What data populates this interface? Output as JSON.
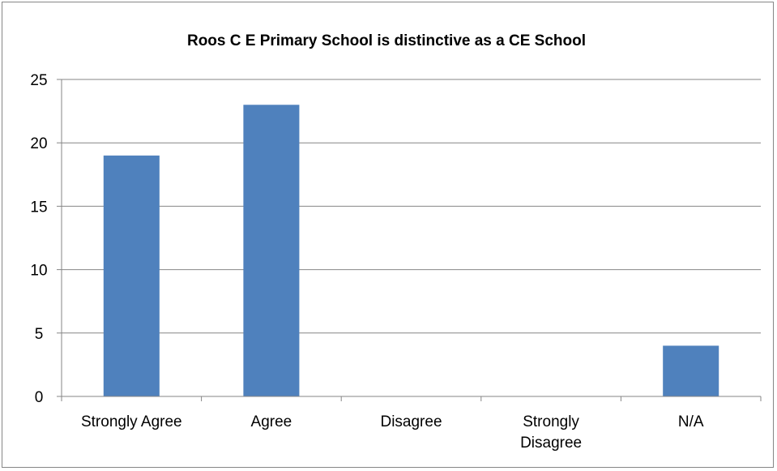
{
  "chart_data": {
    "type": "bar",
    "title": "Roos C E Primary School is  distinctive as a CE School",
    "categories": [
      "Strongly Agree",
      "Agree",
      "Disagree",
      "Strongly Disagree",
      "N/A"
    ],
    "category_lines": [
      [
        "Strongly Agree"
      ],
      [
        "Agree"
      ],
      [
        "Disagree"
      ],
      [
        "Strongly",
        "Disagree"
      ],
      [
        "N/A"
      ]
    ],
    "values": [
      19,
      23,
      0,
      0,
      4
    ],
    "yticks": [
      0,
      5,
      10,
      15,
      20,
      25
    ],
    "ylim": [
      0,
      25
    ],
    "xlabel": "",
    "ylabel": "",
    "grid": true,
    "legend": "none",
    "bar_color": "#4f81bd",
    "grid_color": "#868686"
  }
}
